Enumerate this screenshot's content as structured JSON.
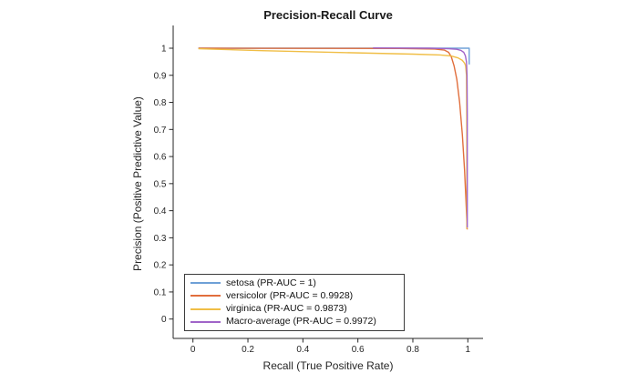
{
  "chart_data": {
    "type": "line",
    "title": "Precision-Recall Curve",
    "xlabel": "Recall (True Positive Rate)",
    "ylabel": "Precision (Positive Predictive Value)",
    "xlim": [
      -0.07,
      1.055
    ],
    "ylim": [
      -0.07,
      1.08
    ],
    "grid": false,
    "box": false,
    "axis_color": "#262626",
    "tick_direction": "out",
    "legend_position": "southwest-inside",
    "x_ticks": [
      0,
      0.2,
      0.4,
      0.6,
      0.8,
      1
    ],
    "x_tick_labels": [
      "0",
      "0.2",
      "0.4",
      "0.6",
      "0.8",
      "1"
    ],
    "y_ticks": [
      0,
      0.1,
      0.2,
      0.3,
      0.4,
      0.5,
      0.6,
      0.7,
      0.8,
      0.9,
      1
    ],
    "y_tick_labels": [
      "0",
      "0.1",
      "0.2",
      "0.3",
      "0.4",
      "0.5",
      "0.6",
      "0.7",
      "0.8",
      "0.9",
      "1"
    ],
    "series": [
      {
        "name": "setosa (PR-AUC = 1)",
        "color": "#6ea0d7",
        "points": [
          [
            0.02,
            1.0
          ],
          [
            1.005,
            1.0
          ],
          [
            1.005,
            0.94
          ]
        ]
      },
      {
        "name": "versicolor (PR-AUC = 0.9928)",
        "color": "#e16e3c",
        "points": [
          [
            0.02,
            1.0
          ],
          [
            0.75,
            0.999
          ],
          [
            0.88,
            0.997
          ],
          [
            0.915,
            0.993
          ],
          [
            0.93,
            0.985
          ],
          [
            0.94,
            0.968
          ],
          [
            0.95,
            0.935
          ],
          [
            0.96,
            0.885
          ],
          [
            0.97,
            0.8
          ],
          [
            0.98,
            0.68
          ],
          [
            0.988,
            0.55
          ],
          [
            0.993,
            0.44
          ],
          [
            0.996,
            0.37
          ],
          [
            0.997,
            0.3333
          ],
          [
            1.0,
            0.3333
          ]
        ]
      },
      {
        "name": "virginica (PR-AUC = 0.9873)",
        "color": "#f0be46",
        "points": [
          [
            0.02,
            0.998
          ],
          [
            0.25,
            0.991
          ],
          [
            0.55,
            0.984
          ],
          [
            0.8,
            0.978
          ],
          [
            0.9,
            0.975
          ],
          [
            0.94,
            0.971
          ],
          [
            0.965,
            0.964
          ],
          [
            0.98,
            0.955
          ],
          [
            0.988,
            0.945
          ],
          [
            0.992,
            0.935
          ],
          [
            0.995,
            0.9
          ],
          [
            0.996,
            0.75
          ],
          [
            0.9965,
            0.5
          ],
          [
            0.9965,
            0.3333
          ]
        ]
      },
      {
        "name": "Macro-average (PR-AUC = 0.9972)",
        "color": "#a064c8",
        "points": [
          [
            0.655,
            1.001
          ],
          [
            0.86,
            1.0
          ],
          [
            0.93,
            0.998
          ],
          [
            0.96,
            0.996
          ],
          [
            0.975,
            0.992
          ],
          [
            0.985,
            0.985
          ],
          [
            0.991,
            0.972
          ],
          [
            0.995,
            0.95
          ],
          [
            0.997,
            0.9
          ],
          [
            0.998,
            0.75
          ],
          [
            0.998,
            0.338
          ]
        ]
      }
    ]
  }
}
